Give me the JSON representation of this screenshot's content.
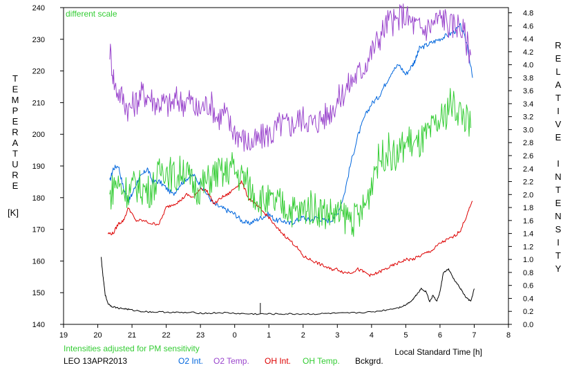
{
  "chart_data": {
    "type": "line",
    "annotation_scale": "different scale",
    "annotation_intensity": "Intensities adjusted for PM sensitivity",
    "station": "LEO 13APR2013",
    "xlabel": "Local Standard Time [h]",
    "ylabel_left": "TEMPERATURE",
    "ylabel_left_unit": "[K]",
    "ylabel_right": "RELATIVE INTENSITY",
    "x_ticks": [
      "19",
      "20",
      "21",
      "22",
      "23",
      "0",
      "1",
      "2",
      "3",
      "4",
      "5",
      "6",
      "7",
      "8"
    ],
    "y_left_ticks": [
      "140",
      "150",
      "160",
      "170",
      "180",
      "190",
      "200",
      "210",
      "220",
      "230",
      "240"
    ],
    "y_right_ticks": [
      "0.0",
      "0.2",
      "0.4",
      "0.6",
      "0.8",
      "1.0",
      "1.2",
      "1.4",
      "1.6",
      "1.8",
      "2.0",
      "2.2",
      "2.4",
      "2.6",
      "2.8",
      "3.0",
      "3.2",
      "3.4",
      "3.6",
      "3.8",
      "4.0",
      "4.2",
      "4.4",
      "4.6",
      "4.8"
    ],
    "x_range": [
      19,
      32
    ],
    "ylim_left": [
      140,
      240
    ],
    "ylim_right": [
      0,
      4.88
    ],
    "grid": false,
    "legend_position": "bottom",
    "series": [
      {
        "name": "O2 Int.",
        "axis": "right",
        "color": "#0066dd",
        "noise": 0.04,
        "x": [
          20.35,
          20.45,
          20.6,
          20.75,
          20.9,
          21.0,
          21.15,
          21.3,
          21.45,
          21.6,
          21.8,
          22.0,
          22.2,
          22.4,
          22.6,
          22.8,
          23.0,
          23.2,
          23.4,
          23.6,
          23.8,
          24.0,
          24.2,
          24.4,
          24.6,
          24.8,
          25.0,
          25.2,
          25.4,
          25.6,
          25.8,
          26.0,
          26.2,
          26.4,
          26.6,
          26.8,
          27.0,
          27.2,
          27.4,
          27.6,
          27.8,
          28.0,
          28.2,
          28.4,
          28.6,
          28.8,
          29.0,
          29.2,
          29.3,
          29.4,
          29.6,
          29.8,
          30.0,
          30.2,
          30.4,
          30.6,
          30.8,
          30.95
        ],
        "y": [
          2.2,
          2.4,
          2.45,
          2.1,
          1.9,
          2.0,
          2.2,
          2.3,
          2.4,
          2.2,
          2.2,
          2.1,
          2.0,
          2.15,
          2.25,
          2.3,
          2.15,
          2.0,
          1.85,
          1.8,
          1.75,
          1.7,
          1.6,
          1.55,
          1.6,
          1.65,
          1.7,
          1.6,
          1.6,
          1.55,
          1.6,
          1.65,
          1.6,
          1.65,
          1.6,
          1.6,
          1.7,
          2.0,
          2.5,
          2.9,
          3.2,
          3.4,
          3.5,
          3.7,
          3.9,
          4.0,
          3.85,
          4.0,
          4.1,
          4.25,
          4.3,
          4.35,
          4.4,
          4.45,
          4.5,
          4.6,
          4.3,
          3.8
        ]
      },
      {
        "name": "O2 Temp.",
        "axis": "left",
        "color": "#9944cc",
        "noise": 4.5,
        "x": [
          20.35,
          20.5,
          20.7,
          20.9,
          21.1,
          21.3,
          21.5,
          21.7,
          21.9,
          22.1,
          22.3,
          22.5,
          22.7,
          22.9,
          23.1,
          23.3,
          23.5,
          23.7,
          23.9,
          24.1,
          24.3,
          24.5,
          24.7,
          24.9,
          25.1,
          25.3,
          25.5,
          25.7,
          25.9,
          26.1,
          26.3,
          26.5,
          26.7,
          26.9,
          27.1,
          27.3,
          27.5,
          27.7,
          27.9,
          28.1,
          28.3,
          28.5,
          28.7,
          28.9,
          29.1,
          29.3,
          29.5,
          29.7,
          29.9,
          30.1,
          30.3,
          30.5,
          30.7,
          30.9
        ],
        "y": [
          227,
          215,
          212,
          208,
          210,
          213,
          212,
          210,
          210,
          209,
          211,
          210,
          211,
          207,
          209,
          210,
          205,
          207,
          202,
          200,
          198,
          197,
          198,
          200,
          200,
          203,
          203,
          203,
          205,
          205,
          203,
          205,
          206,
          209,
          212,
          215,
          218,
          220,
          224,
          228,
          232,
          236,
          235,
          238,
          236,
          234,
          233,
          234,
          236,
          237,
          234,
          235,
          232,
          225
        ]
      },
      {
        "name": "OH Int.",
        "axis": "right",
        "color": "#dd0000",
        "noise": 0.025,
        "x": [
          20.3,
          20.45,
          20.6,
          20.75,
          20.9,
          21.1,
          21.3,
          21.6,
          21.8,
          22.0,
          22.2,
          22.4,
          22.6,
          22.8,
          23.0,
          23.2,
          23.4,
          23.6,
          23.8,
          24.0,
          24.2,
          24.4,
          24.6,
          24.8,
          25.0,
          25.2,
          25.4,
          25.6,
          25.8,
          26.0,
          26.2,
          26.4,
          26.6,
          26.8,
          27.0,
          27.2,
          27.4,
          27.6,
          27.8,
          28.0,
          28.2,
          28.4,
          28.6,
          28.8,
          29.0,
          29.2,
          29.4,
          29.6,
          29.8,
          30.0,
          30.2,
          30.4,
          30.6,
          30.8,
          30.95
        ],
        "y": [
          1.4,
          1.4,
          1.55,
          1.6,
          1.8,
          1.6,
          1.6,
          1.55,
          1.55,
          1.8,
          1.85,
          1.9,
          2.0,
          1.95,
          2.1,
          2.05,
          1.85,
          1.95,
          2.0,
          2.1,
          2.2,
          1.95,
          1.85,
          1.75,
          1.65,
          1.5,
          1.4,
          1.3,
          1.2,
          1.05,
          1.0,
          0.95,
          0.9,
          0.85,
          0.85,
          0.8,
          0.8,
          0.85,
          0.8,
          0.75,
          0.8,
          0.85,
          0.9,
          0.95,
          1.0,
          1.0,
          1.05,
          1.1,
          1.15,
          1.25,
          1.3,
          1.35,
          1.45,
          1.7,
          1.9
        ]
      },
      {
        "name": "OH Temp.",
        "axis": "left",
        "color": "#33cc33",
        "noise": 5.5,
        "x": [
          20.35,
          20.5,
          20.7,
          20.9,
          21.1,
          21.3,
          21.5,
          21.7,
          21.9,
          22.1,
          22.3,
          22.5,
          22.7,
          22.9,
          23.1,
          23.3,
          23.5,
          23.7,
          23.9,
          24.1,
          24.3,
          24.5,
          24.7,
          24.9,
          25.1,
          25.3,
          25.5,
          25.7,
          25.9,
          26.1,
          26.3,
          26.5,
          26.7,
          26.9,
          27.1,
          27.3,
          27.5,
          27.7,
          27.9,
          28.1,
          28.3,
          28.5,
          28.7,
          28.9,
          29.1,
          29.3,
          29.5,
          29.7,
          29.9,
          30.1,
          30.3,
          30.5,
          30.7,
          30.9
        ],
        "y": [
          180,
          185,
          183,
          182,
          184,
          183,
          182,
          185,
          190,
          188,
          186,
          190,
          185,
          183,
          184,
          186,
          188,
          187,
          190,
          187,
          186,
          182,
          180,
          179,
          178,
          178,
          177,
          176,
          175,
          177,
          177,
          176,
          175,
          175,
          174,
          174,
          173,
          175,
          180,
          190,
          193,
          195,
          192,
          196,
          198,
          196,
          198,
          200,
          203,
          205,
          210,
          208,
          206,
          202
        ]
      },
      {
        "name": "Bckgrd.",
        "axis": "right",
        "color": "#000000",
        "noise": 0.012,
        "x": [
          20.1,
          20.15,
          20.22,
          20.3,
          20.4,
          20.6,
          20.8,
          21.0,
          21.3,
          21.6,
          22.0,
          22.4,
          22.8,
          23.2,
          23.6,
          24.0,
          24.4,
          24.8,
          25.2,
          25.6,
          26.0,
          26.4,
          26.8,
          27.2,
          27.6,
          28.0,
          28.4,
          28.8,
          29.0,
          29.2,
          29.3,
          29.45,
          29.6,
          29.7,
          29.8,
          29.9,
          30.0,
          30.1,
          30.25,
          30.4,
          30.6,
          30.75,
          30.9,
          31.0
        ],
        "y": [
          1.03,
          0.75,
          0.45,
          0.32,
          0.28,
          0.25,
          0.24,
          0.22,
          0.2,
          0.19,
          0.19,
          0.18,
          0.18,
          0.17,
          0.18,
          0.17,
          0.16,
          0.16,
          0.16,
          0.16,
          0.16,
          0.16,
          0.17,
          0.17,
          0.18,
          0.19,
          0.22,
          0.26,
          0.3,
          0.38,
          0.45,
          0.55,
          0.5,
          0.35,
          0.45,
          0.35,
          0.5,
          0.8,
          0.85,
          0.7,
          0.55,
          0.42,
          0.35,
          0.55
        ]
      }
    ],
    "spikes": [
      {
        "series": "Bckgrd.",
        "x": 24.75,
        "y": 0.33
      }
    ]
  }
}
